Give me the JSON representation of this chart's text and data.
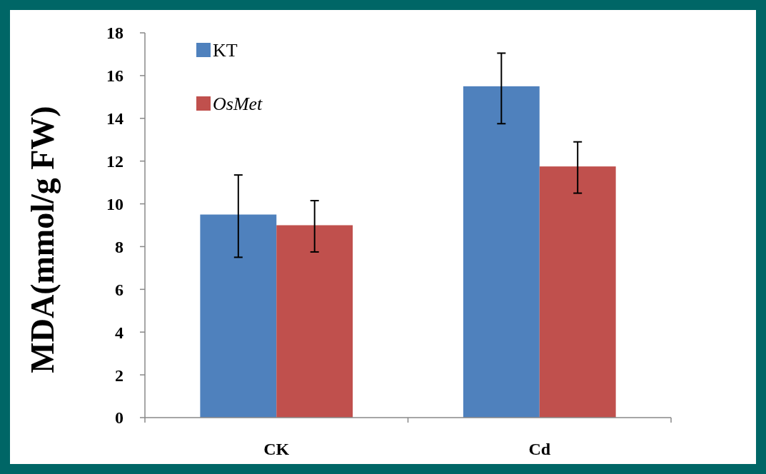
{
  "chart_data": {
    "type": "bar",
    "ylabel": "MDA(mmol/g FW)",
    "categories": [
      "CK",
      "Cd"
    ],
    "series": [
      {
        "name": "KT",
        "color": "#4f81bd",
        "values": [
          9.5,
          15.5
        ],
        "errors": [
          [
            7.5,
            11.35
          ],
          [
            13.75,
            17.05
          ]
        ]
      },
      {
        "name": "OsMet",
        "color": "#c0504d",
        "values": [
          9.0,
          11.75
        ],
        "errors": [
          [
            7.75,
            10.15
          ],
          [
            10.5,
            12.9
          ]
        ]
      }
    ],
    "ylim": [
      0,
      18
    ],
    "yticks": [
      0,
      2,
      4,
      6,
      8,
      10,
      12,
      14,
      16,
      18
    ],
    "grid": false,
    "legend": "top left"
  }
}
